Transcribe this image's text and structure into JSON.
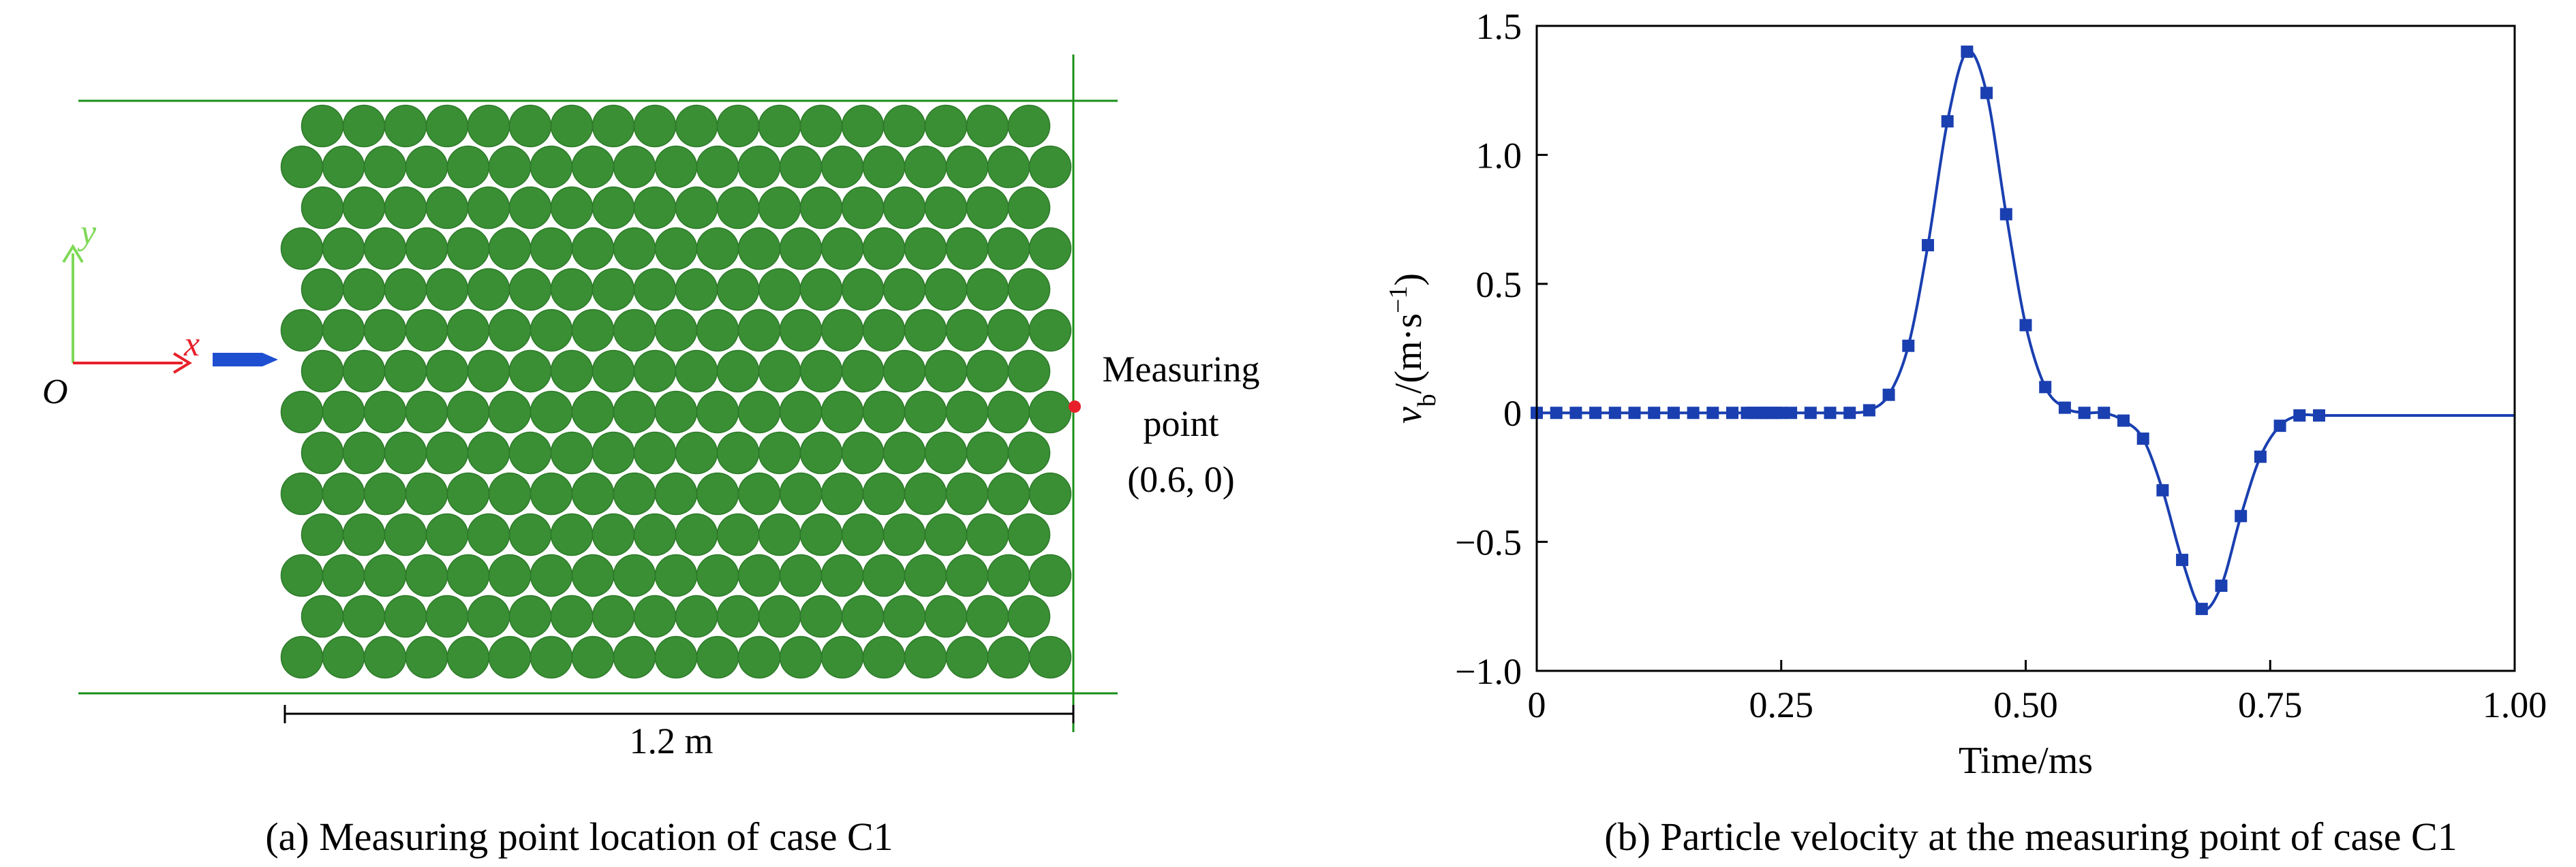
{
  "panel_a": {
    "caption": "(a) Measuring point location of case C1",
    "axis_x": "x",
    "axis_y": "y",
    "origin": "O",
    "measuring_label_1": "Measuring",
    "measuring_label_2": "point",
    "measuring_coords": "(0.6, 0)",
    "dimension": "1.2 m",
    "particle_color": "#3a8f34",
    "particle_rows": 14,
    "particle_cols": 20,
    "colors": {
      "boundary": "#1a8f1a",
      "x_axis": "#e8202a",
      "y_axis": "#7ed957",
      "arrow": "#1f4fd1",
      "point": "#e8202a"
    }
  },
  "panel_b": {
    "caption": "(b) Particle velocity at the measuring point of case C1"
  },
  "chart_data": {
    "type": "line",
    "title": "",
    "xlabel": "Time/ms",
    "ylabel": "v_b/(m·s⁻¹)",
    "ylabel_main": "v",
    "ylabel_sub": "b",
    "ylabel_rest": "/(m·s",
    "ylabel_sup": "−1",
    "ylabel_close": ")",
    "xlim": [
      0,
      1.0
    ],
    "ylim": [
      -1.0,
      1.5
    ],
    "xticks": [
      0,
      0.25,
      0.5,
      0.75,
      1.0
    ],
    "xtick_labels": [
      "0",
      "0.25",
      "0.50",
      "0.75",
      "1.00"
    ],
    "yticks": [
      -1.0,
      -0.5,
      0,
      0.5,
      1.0,
      1.5
    ],
    "ytick_labels": [
      "−1.0",
      "−0.5",
      "0",
      "0.5",
      "1.0",
      "1.5"
    ],
    "line_color": "#1a3fb0",
    "marker_color": "#1a3fb0",
    "series": [
      {
        "x": [
          0.0,
          0.02,
          0.04,
          0.06,
          0.08,
          0.1,
          0.12,
          0.14,
          0.16,
          0.18,
          0.2,
          0.215,
          0.22,
          0.225,
          0.23,
          0.235,
          0.24,
          0.245,
          0.25,
          0.26,
          0.28,
          0.3,
          0.32,
          0.34,
          0.36,
          0.38,
          0.4,
          0.42,
          0.44,
          0.46,
          0.48,
          0.5,
          0.52,
          0.54,
          0.56,
          0.58,
          0.6,
          0.62,
          0.64,
          0.66,
          0.68,
          0.7,
          0.72,
          0.74,
          0.76,
          0.78,
          0.8,
          0.82,
          0.84,
          0.86,
          0.88,
          0.9,
          0.92,
          0.94,
          0.96,
          0.98,
          1.0
        ],
        "y": [
          0.0,
          0.0,
          0.0,
          0.0,
          0.0,
          0.0,
          0.0,
          0.0,
          0.0,
          0.0,
          0.0,
          0.0,
          0.0,
          0.0,
          0.0,
          0.0,
          0.0,
          0.0,
          0.0,
          0.0,
          0.0,
          0.0,
          0.0,
          0.01,
          0.07,
          0.26,
          0.65,
          1.13,
          1.4,
          1.24,
          0.77,
          0.34,
          0.1,
          0.02,
          0.0,
          0.0,
          -0.03,
          -0.1,
          -0.3,
          -0.57,
          -0.76,
          -0.67,
          -0.4,
          -0.17,
          -0.05,
          -0.01,
          -0.01,
          -0.01,
          -0.01,
          -0.01,
          -0.01,
          -0.01,
          -0.01,
          -0.01,
          -0.01,
          -0.01,
          -0.01
        ],
        "x_markers": [
          0.0,
          0.02,
          0.04,
          0.06,
          0.08,
          0.1,
          0.12,
          0.14,
          0.16,
          0.18,
          0.2,
          0.215,
          0.22,
          0.225,
          0.23,
          0.235,
          0.24,
          0.245,
          0.25,
          0.26,
          0.28,
          0.3,
          0.32,
          0.34,
          0.36,
          0.38,
          0.4,
          0.42,
          0.44,
          0.46,
          0.48,
          0.5,
          0.52,
          0.54,
          0.56,
          0.58,
          0.6,
          0.62,
          0.64,
          0.66,
          0.68,
          0.7,
          0.72,
          0.74,
          0.76,
          0.78,
          0.8
        ]
      }
    ]
  }
}
